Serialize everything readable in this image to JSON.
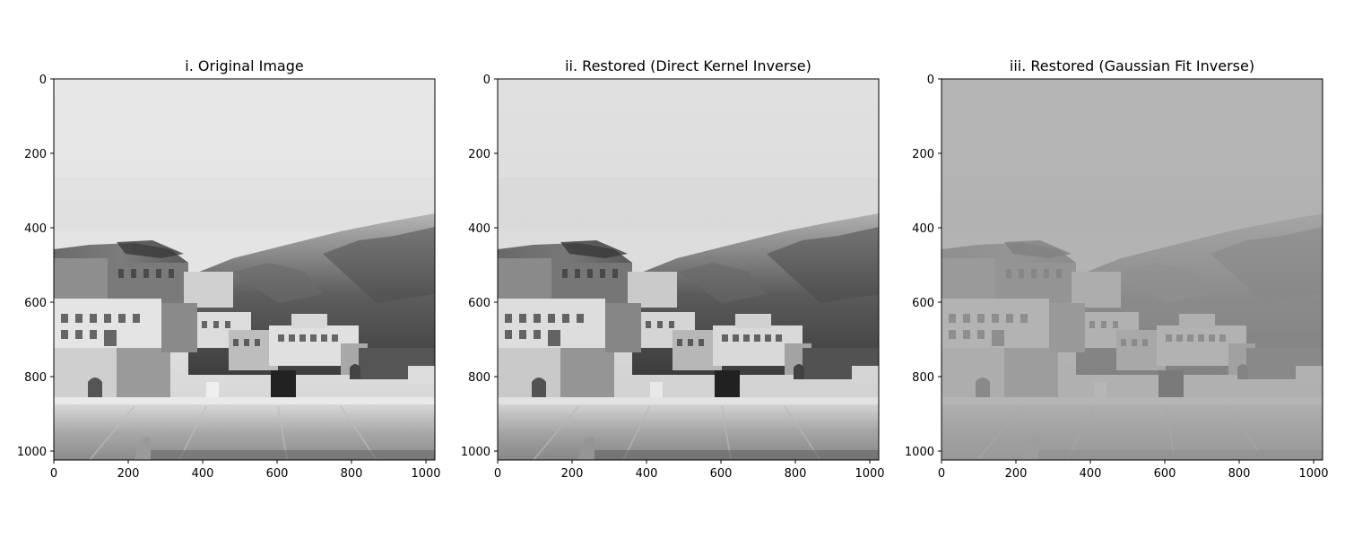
{
  "panels": [
    {
      "title": "i. Original Image",
      "xticks": [
        "0",
        "200",
        "400",
        "600",
        "800",
        "1000"
      ],
      "yticks": [
        "0",
        "200",
        "400",
        "600",
        "800",
        "1000"
      ],
      "tone": "original"
    },
    {
      "title": "ii. Restored (Direct Kernel Inverse)",
      "xticks": [
        "0",
        "200",
        "400",
        "600",
        "800",
        "1000"
      ],
      "yticks": [
        "0",
        "200",
        "400",
        "600",
        "800",
        "1000"
      ],
      "tone": "direct"
    },
    {
      "title": "iii. Restored (Gaussian Fit Inverse)",
      "xticks": [
        "0",
        "200",
        "400",
        "600",
        "800",
        "1000"
      ],
      "yticks": [
        "0",
        "200",
        "400",
        "600",
        "800",
        "1000"
      ],
      "tone": "gaussian"
    }
  ],
  "axis_range": {
    "x": [
      0,
      1024
    ],
    "y": [
      0,
      1024
    ]
  },
  "tick_values": [
    0,
    200,
    400,
    600,
    800,
    1000
  ],
  "colors": {
    "text": "#000000",
    "frame": "#000000"
  }
}
